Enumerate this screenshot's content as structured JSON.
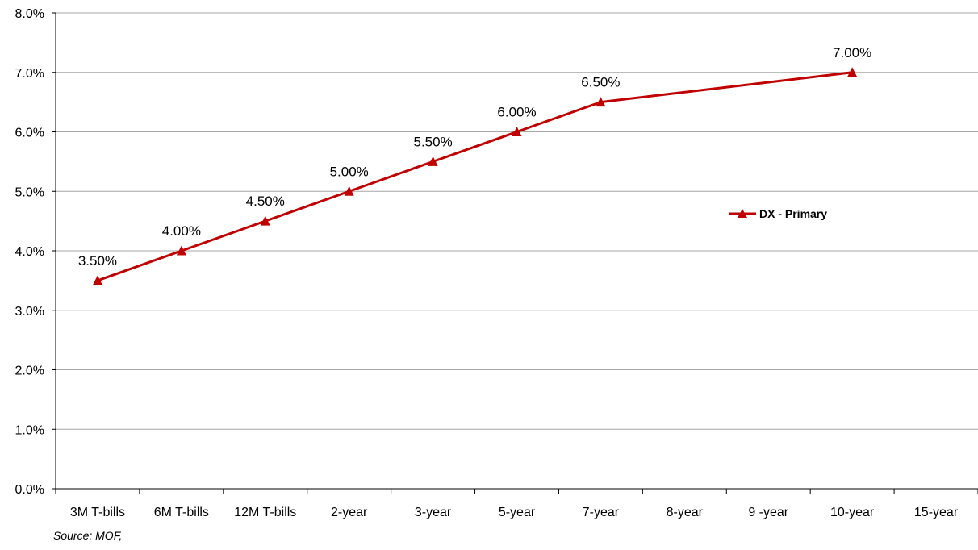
{
  "chart_data": {
    "type": "line",
    "categories": [
      "3M T-bills",
      "6M T-bills",
      "12M T-bills",
      "2-year",
      "3-year",
      "5-year",
      "7-year",
      "8-year",
      "9 -year",
      "10-year",
      "15-year"
    ],
    "series": [
      {
        "name": "DX - Primary",
        "values": [
          3.5,
          4.0,
          4.5,
          5.0,
          5.5,
          6.0,
          6.5,
          null,
          null,
          7.0,
          null
        ],
        "data_labels": [
          "3.50%",
          "4.00%",
          "4.50%",
          "5.00%",
          "5.50%",
          "6.00%",
          "6.50%",
          null,
          null,
          "7.00%",
          null
        ],
        "color": "#C00000",
        "marker": "triangle"
      }
    ],
    "ylim": [
      0,
      8
    ],
    "yticks": [
      "0.0%",
      "1.0%",
      "2.0%",
      "3.0%",
      "4.0%",
      "5.0%",
      "6.0%",
      "7.0%",
      "8.0%"
    ],
    "ytick_values": [
      0,
      1,
      2,
      3,
      4,
      5,
      6,
      7,
      8
    ],
    "grid": true,
    "grid_color": "#A6A6A6",
    "legend_position": "right"
  },
  "source_note": "Source: MOF,"
}
